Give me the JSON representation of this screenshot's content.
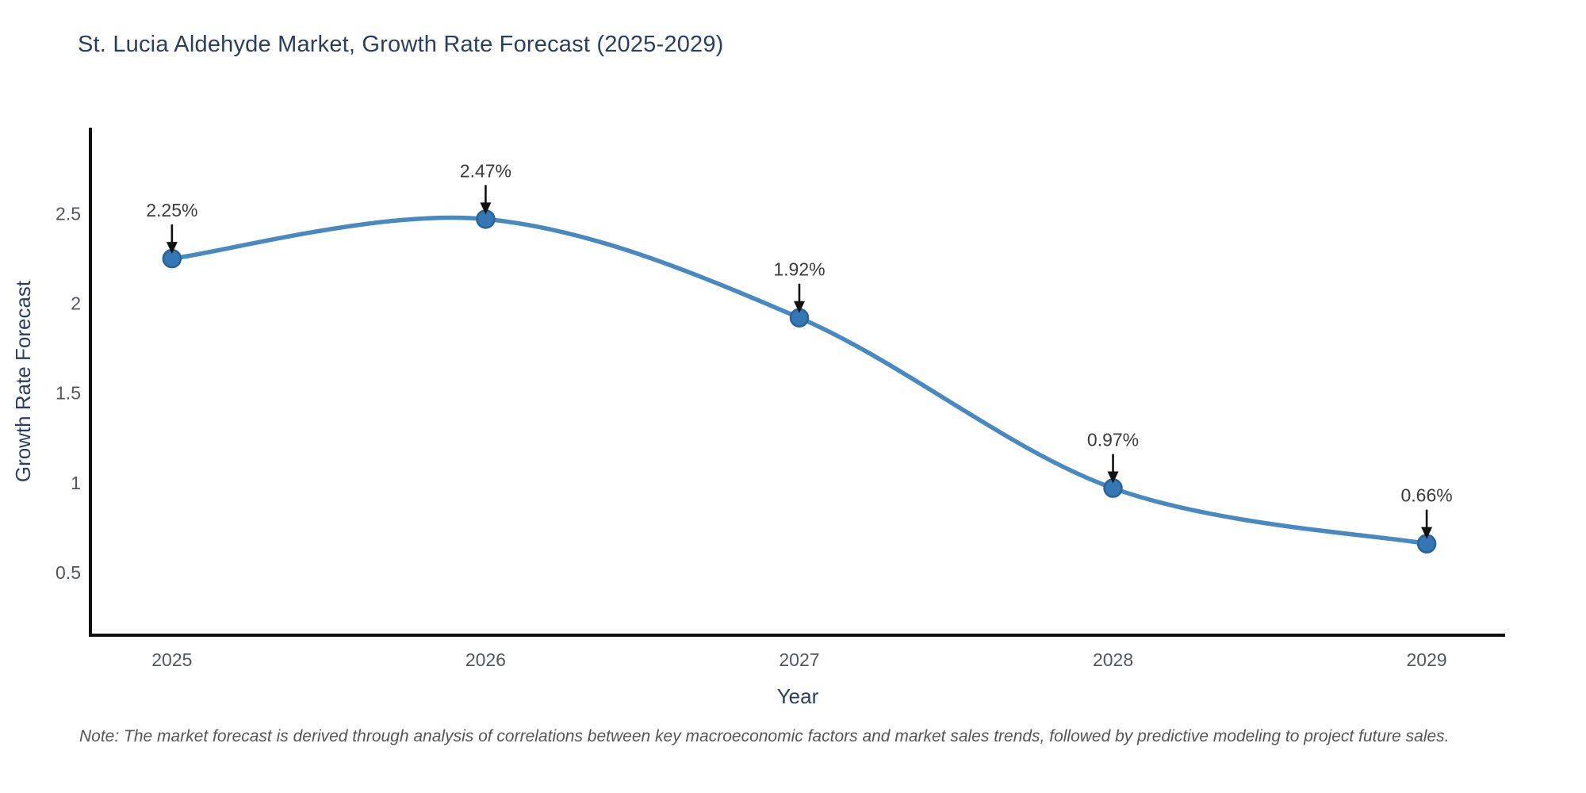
{
  "title": "St. Lucia Aldehyde Market, Growth Rate Forecast (2025-2029)",
  "note": "Note: The market forecast is derived through analysis of correlations between key macroeconomic factors and market sales trends, followed by predictive modeling to project future sales.",
  "chart_data": {
    "type": "line",
    "line_shape": "spline",
    "title": "St. Lucia Aldehyde Market, Growth Rate Forecast (2025-2029)",
    "categories": [
      "2025",
      "2026",
      "2027",
      "2028",
      "2029"
    ],
    "values": [
      2.25,
      2.47,
      1.92,
      0.97,
      0.66
    ],
    "point_labels": [
      "2.25%",
      "2.47%",
      "1.92%",
      "0.97%",
      "0.66%"
    ],
    "xlabel": "Year",
    "ylabel": "Growth Rate Forecast",
    "yticks": [
      0.5,
      1,
      1.5,
      2,
      2.5
    ],
    "ylim": [
      0.15,
      2.98
    ],
    "xlim_units": [
      -0.26,
      4.25
    ],
    "grid": false,
    "legend_position": "none",
    "annotations_have_arrows": true,
    "colors": {
      "line": "#4889c2",
      "marker_fill": "#3377b4",
      "marker_edge": "#2a6396",
      "axis_line": "#101010",
      "title_text": "#2a3f5f",
      "axis_title_text": "#2a3f5f",
      "tick_text": "#51565f",
      "annotation_text": "#3b3b3b",
      "arrow": "#111111",
      "note_text": "#555555",
      "background": "#ffffff"
    }
  }
}
